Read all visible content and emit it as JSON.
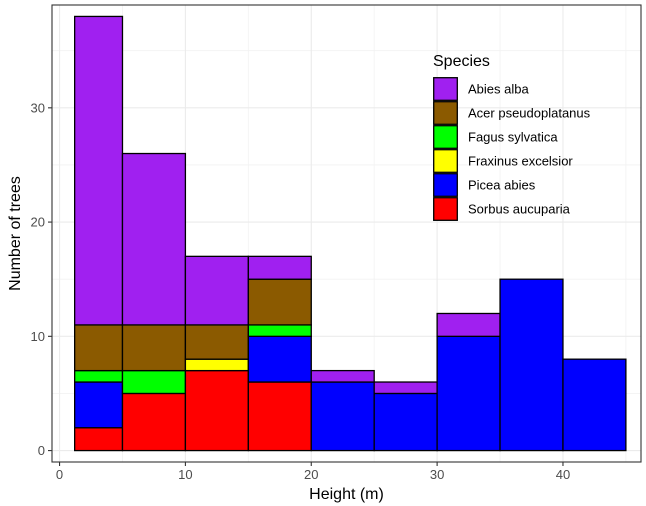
{
  "chart_data": {
    "type": "bar",
    "stacked": true,
    "xlabel": "Height (m)",
    "ylabel": "Number of trees",
    "xlim": [
      -0.6,
      46.2
    ],
    "ylim": [
      -1,
      39
    ],
    "x_ticks": [
      0,
      10,
      20,
      30,
      40
    ],
    "y_ticks": [
      0,
      10,
      20,
      30
    ],
    "grid": true,
    "legend": {
      "title": "Species",
      "position": "top-right-inside"
    },
    "bins": [
      {
        "x0": 1.2,
        "x1": 5
      },
      {
        "x0": 5,
        "x1": 10
      },
      {
        "x0": 10,
        "x1": 15
      },
      {
        "x0": 15,
        "x1": 20
      },
      {
        "x0": 20,
        "x1": 25
      },
      {
        "x0": 25,
        "x1": 30
      },
      {
        "x0": 30,
        "x1": 35
      },
      {
        "x0": 35,
        "x1": 40
      },
      {
        "x0": 40,
        "x1": 45
      }
    ],
    "series": [
      {
        "name": "Abies alba",
        "color": "#a020f0",
        "values": [
          27,
          15,
          6,
          2,
          1,
          1,
          2,
          0,
          0
        ]
      },
      {
        "name": "Acer pseudoplatanus",
        "color": "#8b5a00",
        "values": [
          4,
          4,
          3,
          4,
          0,
          0,
          0,
          0,
          0
        ]
      },
      {
        "name": "Fagus sylvatica",
        "color": "#00ff00",
        "values": [
          1,
          2,
          0,
          1,
          0,
          0,
          0,
          0,
          0
        ]
      },
      {
        "name": "Fraxinus excelsior",
        "color": "#ffff00",
        "values": [
          0,
          0,
          1,
          0,
          0,
          0,
          0,
          0,
          0
        ]
      },
      {
        "name": "Picea abies",
        "color": "#0000ff",
        "values": [
          4,
          0,
          0,
          4,
          6,
          5,
          10,
          15,
          8
        ]
      },
      {
        "name": "Sorbus aucuparia",
        "color": "#ff0000",
        "values": [
          2,
          5,
          7,
          6,
          0,
          0,
          0,
          0,
          0
        ]
      }
    ]
  }
}
